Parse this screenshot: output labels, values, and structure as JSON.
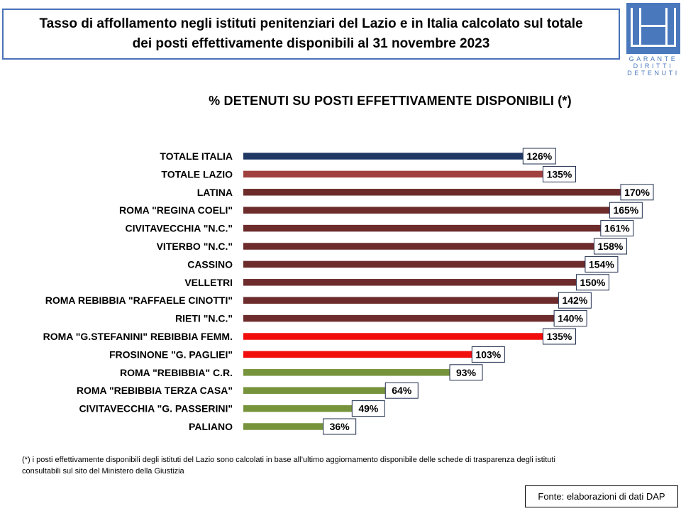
{
  "header": {
    "title_line1": "Tasso di affollamento negli istituti penitenziari del Lazio e in Italia calcolato sul totale",
    "title_line2": "dei posti effettivamente disponibili al 31 novembre 2023"
  },
  "logo": {
    "line1": "GARANTE",
    "line2": "DIRITTI",
    "line3": "DETENUTI",
    "color": "#4a78bd"
  },
  "chart_data": {
    "type": "bar",
    "orientation": "horizontal",
    "title": "% DETENUTI SU POSTI EFFETTIVAMENTE DISPONIBILI (*)",
    "value_suffix": "%",
    "xlim": [
      0,
      170
    ],
    "grid": false,
    "legend": "none",
    "categories": [
      "TOTALE ITALIA",
      "TOTALE LAZIO",
      "LATINA",
      "ROMA \"REGINA COELI\"",
      "CIVITAVECCHIA \"N.C.\"",
      "VITERBO \"N.C.\"",
      "CASSINO",
      "VELLETRI",
      "ROMA REBIBBIA \"RAFFAELE CINOTTI\"",
      "RIETI \"N.C.\"",
      "ROMA \"G.STEFANINI\" REBIBBIA FEMM.",
      "FROSINONE \"G. PAGLIEI\"",
      "ROMA \"REBIBBIA\" C.R.",
      "ROMA \"REBIBBIA TERZA CASA\"",
      "CIVITAVECCHIA \"G. PASSERINI\"",
      "PALIANO"
    ],
    "values": [
      126,
      135,
      170,
      165,
      161,
      158,
      154,
      150,
      142,
      140,
      135,
      103,
      93,
      64,
      49,
      36
    ],
    "colors": [
      "#1f3864",
      "#a0413f",
      "#6d2b2b",
      "#6d2b2b",
      "#6d2b2b",
      "#6d2b2b",
      "#6d2b2b",
      "#6d2b2b",
      "#6d2b2b",
      "#6d2b2b",
      "#f20d0d",
      "#f20d0d",
      "#77933c",
      "#77933c",
      "#77933c",
      "#77933c"
    ]
  },
  "footnote": {
    "line1": "(*) i posti effettivamente disponibili  degli istituti del Lazio sono  calcolati in base all’ultimo aggiornamento disponibile  delle schede di trasparenza degli istituti",
    "line2": "consultabili  sul sito del Ministero della Giustizia"
  },
  "source": "Fonte: elaborazioni di dati DAP"
}
